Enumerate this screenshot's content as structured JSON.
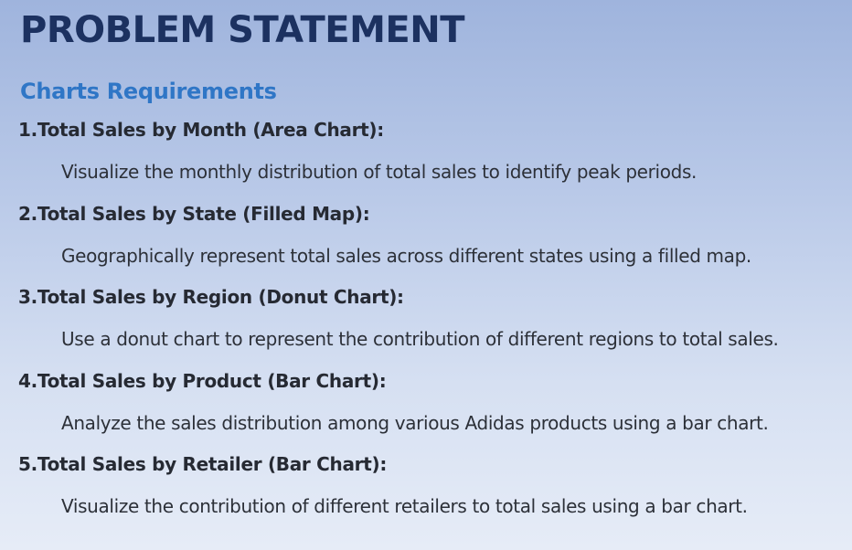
{
  "slide": {
    "title": "PROBLEM STATEMENT",
    "subtitle": "Charts Requirements",
    "requirements": [
      {
        "heading": "1.Total Sales by Month (Area Chart):",
        "description": "Visualize the monthly distribution of total sales to identify peak periods."
      },
      {
        "heading": "2.Total Sales by State (Filled Map):",
        "description": "Geographically represent total sales across different states using a filled map."
      },
      {
        "heading": "3.Total Sales by Region (Donut Chart):",
        "description": "Use a donut chart to represent the contribution of different regions to total sales."
      },
      {
        "heading": "4.Total Sales by Product (Bar Chart):",
        "description": "Analyze the sales distribution among various Adidas products using a bar chart."
      },
      {
        "heading": "5.Total Sales by Retailer (Bar Chart):",
        "description": "Visualize the contribution of different retailers to total sales using a bar chart."
      }
    ]
  },
  "colors": {
    "title": "#1c3160",
    "subtitle": "#2f76c6",
    "body_text": "#262a33",
    "background_top": "#9fb4dd",
    "background_bottom": "#e6ecf7"
  }
}
